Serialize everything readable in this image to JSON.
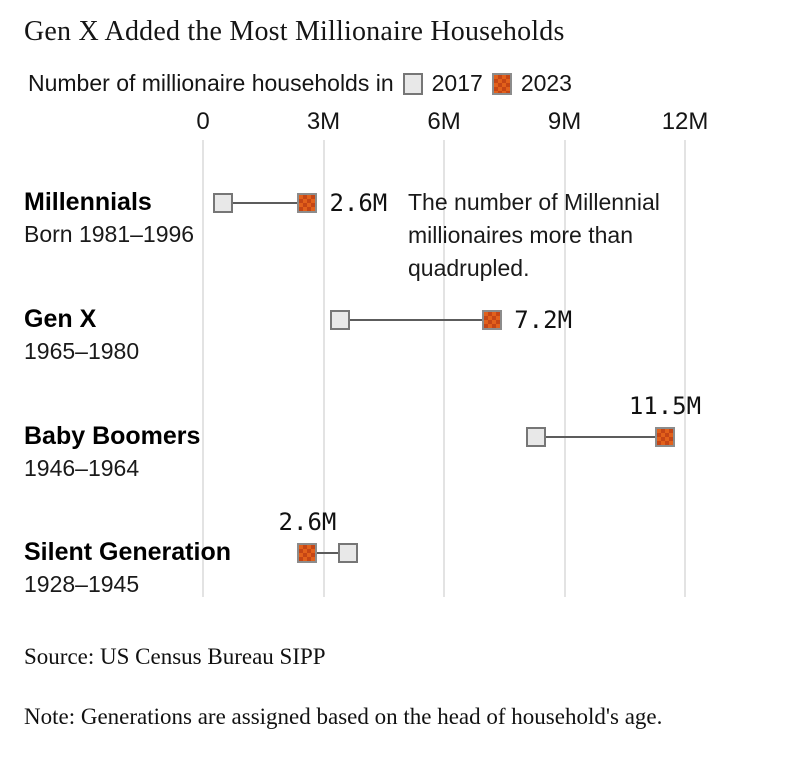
{
  "title": "Gen X Added the Most Millionaire Households",
  "legend": {
    "prefix": "Number of millionaire households in",
    "items": [
      {
        "label": "2017",
        "swatch": "gray-square-swatch"
      },
      {
        "label": "2023",
        "swatch": "orange-checkered-swatch"
      }
    ]
  },
  "annotation": {
    "lines": [
      "The number of Millennial",
      "millionaires more than",
      "quadrupled."
    ]
  },
  "source": "Source: US Census Bureau SIPP",
  "note": "Note: Generations are assigned based on the head of household's age.",
  "colors": {
    "accent_orange": "#e2611b",
    "accent_orange_dark": "#c54615",
    "swatch_gray": "#e8e8e8",
    "swatch_border": "#767676",
    "gridline": "#e3e3e3",
    "connector": "#5c5c5c"
  },
  "chart_data": {
    "type": "dumbbell",
    "title": "Gen X Added the Most Millionaire Households",
    "subtitle": "Number of millionaire households in 2017 vs 2023",
    "unit": "millions of households",
    "xlim": [
      0,
      12
    ],
    "grid": true,
    "legend_position": "top",
    "axis_ticks": [
      {
        "label": "0",
        "value": 0
      },
      {
        "label": "3M",
        "value": 3
      },
      {
        "label": "6M",
        "value": 6
      },
      {
        "label": "9M",
        "value": 9
      },
      {
        "label": "12M",
        "value": 12
      }
    ],
    "categories": [
      "Millennials",
      "Gen X",
      "Baby Boomers",
      "Silent Generation"
    ],
    "sublabels": [
      "Born 1981–1996",
      "1965–1980",
      "1946–1964",
      "1928–1945"
    ],
    "series": [
      {
        "name": "2017",
        "values": [
          0.5,
          3.4,
          8.3,
          3.6
        ]
      },
      {
        "name": "2023",
        "values": [
          2.6,
          7.2,
          11.5,
          2.6
        ]
      }
    ],
    "value_labels": [
      {
        "text": "2.6M",
        "for": "2023",
        "position": "right"
      },
      {
        "text": "7.2M",
        "for": "2023",
        "position": "right"
      },
      {
        "text": "11.5M",
        "for": "2023",
        "position": "above"
      },
      {
        "text": "2.6M",
        "for": "2023",
        "position": "above"
      }
    ]
  }
}
